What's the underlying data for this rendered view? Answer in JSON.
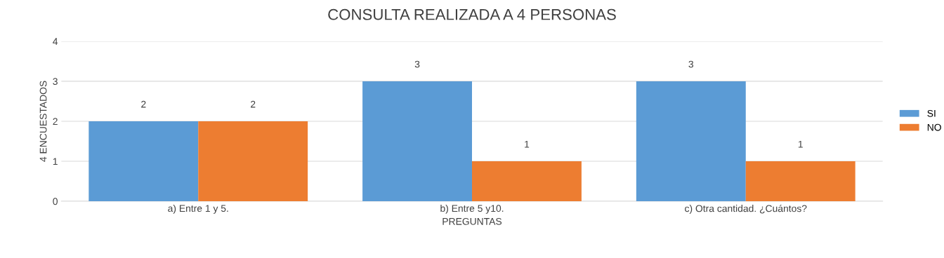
{
  "chart_data": {
    "type": "bar",
    "title": "CONSULTA REALIZADA A 4 PERSONAS",
    "xlabel": "PREGUNTAS",
    "ylabel": "4 ENCUESTADOS",
    "categories": [
      "a) Entre 1 y 5.",
      "b) Entre 5 y10.",
      "c) Otra cantidad. ¿Cuántos?"
    ],
    "series": [
      {
        "name": "SI",
        "color": "#5b9bd5",
        "values": [
          2,
          3,
          3
        ]
      },
      {
        "name": "NO",
        "color": "#ed7d31",
        "values": [
          2,
          1,
          1
        ]
      }
    ],
    "ylim": [
      0,
      4
    ],
    "yticks": [
      0,
      1,
      2,
      3,
      4
    ],
    "grid": "y",
    "legend": "right",
    "data_labels": true
  }
}
